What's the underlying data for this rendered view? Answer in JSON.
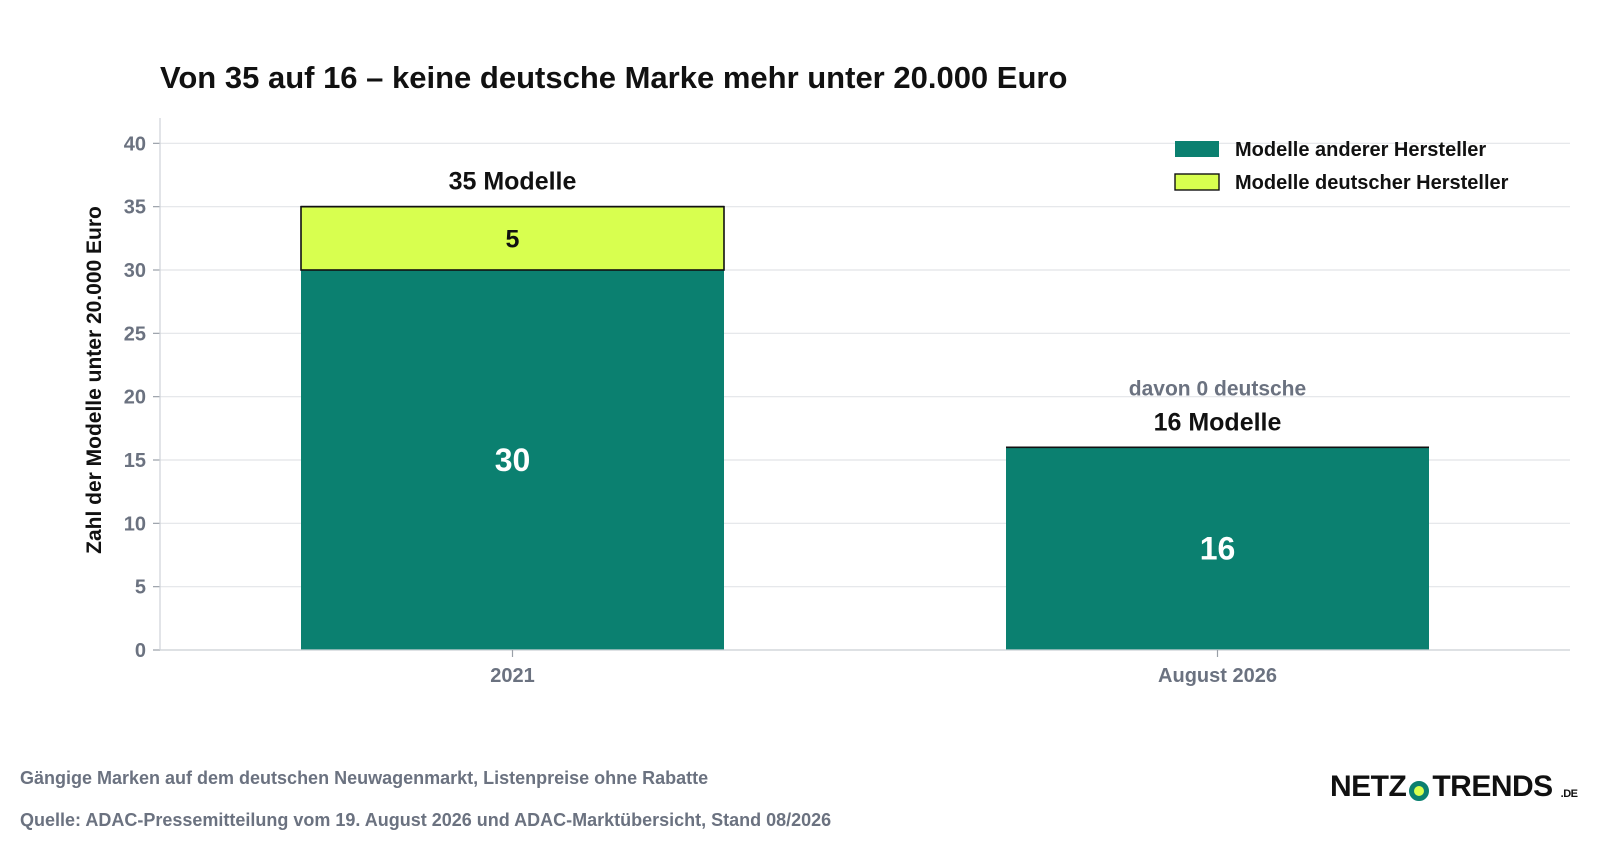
{
  "chart_data": {
    "type": "bar",
    "stacked": true,
    "title": "Von 35 auf 16 – keine deutsche Marke mehr unter 20.000 Euro",
    "ylabel": "Zahl der Modelle unter 20.000 Euro",
    "xlabel": "",
    "ylim": [
      0,
      42
    ],
    "yticks": [
      0,
      5,
      10,
      15,
      20,
      25,
      30,
      35,
      40
    ],
    "grid": true,
    "legend_position": "top-right",
    "categories": [
      "2021",
      "August 2026"
    ],
    "series": [
      {
        "name": "Modelle anderer Hersteller",
        "values": [
          30,
          16
        ],
        "color": "#0b8070",
        "labels": [
          "30",
          "16"
        ]
      },
      {
        "name": "Modelle deutscher Hersteller",
        "values": [
          5,
          0
        ],
        "color": "#d8ff4f",
        "labels": [
          "5",
          ""
        ]
      }
    ],
    "totals": [
      "35 Modelle",
      "16 Modelle"
    ],
    "annotations": [
      "",
      "davon 0 deutsche"
    ]
  },
  "footer": {
    "note": "Gängige Marken auf dem deutschen Neuwagenmarkt, Listenpreise ohne Rabatte",
    "source": "Quelle: ADAC-Pressemitteilung vom 19. August 2026 und ADAC-Marktübersicht, Stand 08/2026"
  },
  "logo": {
    "left": "NETZ",
    "right": "TRENDS",
    "tld": ".DE"
  }
}
